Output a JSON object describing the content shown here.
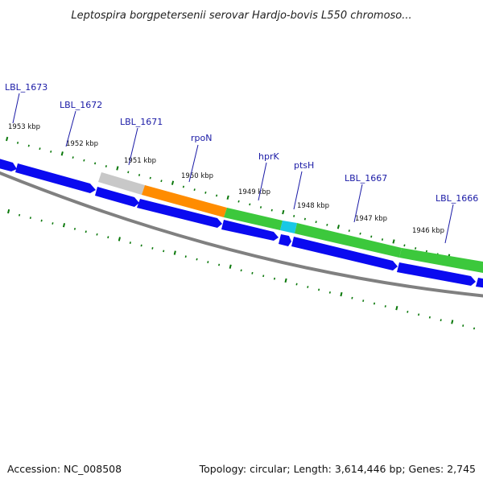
{
  "title": "Leptospira borgpetersenii serovar Hardjo-bovis L550 chromoso...",
  "colors": {
    "backbone": "#808080",
    "cds": "#0a0af0",
    "pseudogene": "#c8c8c8",
    "gene_orange": "#ff8c00",
    "gene_green": "#3cc83c",
    "gene_cyan": "#19c8e6",
    "tick": "#0a780a",
    "label": "#1a1aa6"
  },
  "scale_labels": [
    "1953 kbp",
    "1952 kbp",
    "1951 kbp",
    "1950 kbp",
    "1949 kbp",
    "1948 kbp",
    "1947 kbp",
    "1946 kbp"
  ],
  "genes": [
    {
      "name": "LBL_1673",
      "icon": "label-pointer-line"
    },
    {
      "name": "LBL_1672",
      "icon": "label-pointer-line"
    },
    {
      "name": "LBL_1671",
      "icon": "label-pointer-line"
    },
    {
      "name": "rpoN",
      "icon": "label-pointer-line"
    },
    {
      "name": "hprK",
      "icon": "label-pointer-line"
    },
    {
      "name": "ptsH",
      "icon": "label-pointer-line"
    },
    {
      "name": "LBL_1667",
      "icon": "label-pointer-line"
    },
    {
      "name": "LBL_1666",
      "icon": "label-pointer-line"
    }
  ],
  "footer": {
    "accession": "Accession: NC_008508",
    "summary": "Topology: circular; Length: 3,614,446 bp; Genes: 2,745"
  }
}
